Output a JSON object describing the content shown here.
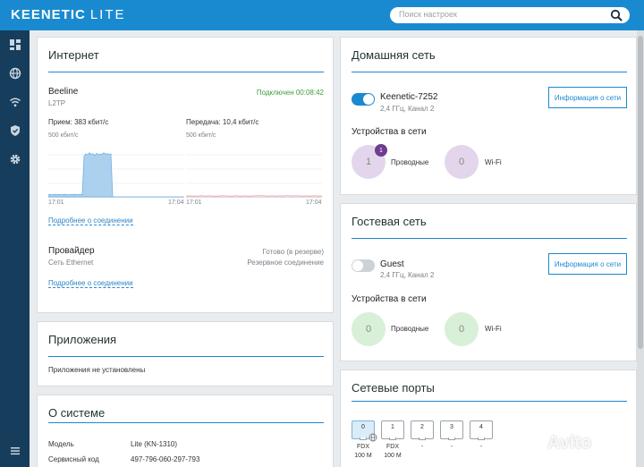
{
  "header": {
    "brand": "KEENETIC",
    "model": "LITE",
    "search_placeholder": "Поиск настроек"
  },
  "sidebar": {
    "items": [
      {
        "icon": "dashboard-icon",
        "label": "Dashboard"
      },
      {
        "icon": "globe-icon",
        "label": "Internet"
      },
      {
        "icon": "wifi-icon",
        "label": "Wi-Fi"
      },
      {
        "icon": "shield-icon",
        "label": "Security"
      },
      {
        "icon": "gear-icon",
        "label": "Settings"
      }
    ],
    "menu_icon": "menu-icon"
  },
  "internet": {
    "title": "Интернет",
    "connection_name": "Beeline",
    "protocol": "L2TP",
    "status": "Подключен 00:08:42",
    "rx_label": "Прием: 383 кбит/с",
    "tx_label": "Передача: 10,4 кбит/с",
    "rx_scale": "500 кбит/с",
    "tx_scale": "500 кбит/с",
    "rx_time_start": "17:01",
    "rx_time_end": "17:04",
    "tx_time_start": "17:01",
    "tx_time_end": "17:04",
    "details_link": "Подробнее о соединении",
    "provider_label": "Провайдер",
    "provider_status": "Готово (в резерве)",
    "provider_type": "Сеть Ethernet",
    "provider_role": "Резервное соединение",
    "provider_details_link": "Подробнее о соединении"
  },
  "chart_data": [
    {
      "type": "area",
      "title": "Прием",
      "scale_label": "500 кбит/с",
      "ylim": [
        0,
        500
      ],
      "x_start": "17:01",
      "x_end": "17:04",
      "values": [
        20,
        22,
        19,
        21,
        23,
        20,
        22,
        21,
        20,
        23,
        22,
        21,
        20,
        22,
        21,
        23,
        20,
        21,
        22,
        20,
        380,
        400,
        390,
        410,
        395,
        400,
        385,
        405,
        390,
        400,
        395,
        410,
        398,
        402,
        396,
        400,
        0,
        0,
        0,
        0,
        0,
        0,
        0,
        0,
        0,
        0,
        0,
        0,
        0,
        0,
        0,
        0,
        0,
        0,
        0,
        0,
        0,
        0,
        0,
        0,
        0,
        0,
        0,
        0,
        0,
        0,
        0,
        0,
        0,
        0,
        0,
        0,
        0,
        0,
        0,
        0,
        0
      ],
      "color": "#9ec9ec"
    },
    {
      "type": "line",
      "title": "Передача",
      "scale_label": "500 кбит/с",
      "ylim": [
        0,
        500
      ],
      "x_start": "17:01",
      "x_end": "17:04",
      "values": [
        6,
        8,
        5,
        7,
        9,
        6,
        8,
        7,
        5,
        9,
        8,
        6,
        7,
        9,
        5,
        8,
        7,
        6,
        9,
        10,
        8,
        6,
        9,
        7,
        8,
        6,
        10,
        7,
        9,
        8,
        6,
        8,
        7,
        9,
        6,
        8
      ],
      "color": "#e8a3a3"
    }
  ],
  "home_network": {
    "title": "Домашняя сеть",
    "ssid": "Keenetic-7252",
    "band": "2,4 ГГц, Канал 2",
    "info_button": "Информация о сети",
    "devices_title": "Устройства в сети",
    "wired_count": "1",
    "wired_badge": "1",
    "wired_label": "Проводные",
    "wifi_count": "0",
    "wifi_label": "Wi-Fi"
  },
  "guest_network": {
    "title": "Гостевая сеть",
    "ssid": "Guest",
    "band": "2,4 ГГц, Канал 2",
    "info_button": "Информация о сети",
    "devices_title": "Устройства в сети",
    "wired_count": "0",
    "wired_label": "Проводные",
    "wifi_count": "0",
    "wifi_label": "Wi-Fi"
  },
  "apps": {
    "title": "Приложения",
    "empty_text": "Приложения не установлены"
  },
  "system": {
    "title": "О системе",
    "model_label": "Модель",
    "model_value": "Lite (KN-1310)",
    "service_label": "Сервисный код",
    "service_value": "497-796-060-297-793"
  },
  "ports": {
    "title": "Сетевые порты",
    "items": [
      {
        "num": "0",
        "duplex": "FDX",
        "speed": "100 M"
      },
      {
        "num": "1",
        "duplex": "FDX",
        "speed": "100 M"
      },
      {
        "num": "2",
        "duplex": "-",
        "speed": ""
      },
      {
        "num": "3",
        "duplex": "-",
        "speed": ""
      },
      {
        "num": "4",
        "duplex": "-",
        "speed": ""
      }
    ]
  },
  "watermark": "Avito"
}
